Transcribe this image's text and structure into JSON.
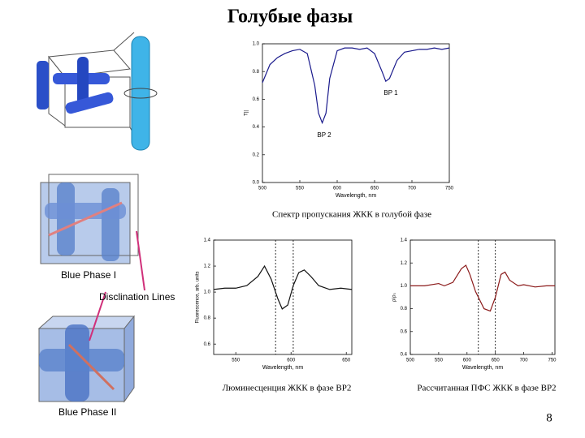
{
  "title": "Голубые фазы",
  "page_number": "8",
  "figure_labels": [
    "Blue Phase I",
    "Disclination Lines",
    "Blue Phase II"
  ],
  "chart_data": [
    {
      "type": "line",
      "caption": "Спектр пропускания ЖКК в голубой фазе",
      "x_label": "Wavelength, nm",
      "y_label": "T||",
      "annotations": [
        "BP 2",
        "BP 1"
      ],
      "x": [
        500,
        510,
        520,
        530,
        540,
        550,
        560,
        570,
        575,
        580,
        585,
        590,
        600,
        610,
        620,
        630,
        640,
        650,
        660,
        665,
        670,
        680,
        690,
        700,
        710,
        720,
        730,
        740,
        750
      ],
      "values": [
        0.72,
        0.85,
        0.9,
        0.93,
        0.95,
        0.96,
        0.93,
        0.7,
        0.5,
        0.43,
        0.5,
        0.75,
        0.95,
        0.97,
        0.97,
        0.96,
        0.97,
        0.93,
        0.8,
        0.73,
        0.75,
        0.88,
        0.94,
        0.95,
        0.96,
        0.96,
        0.97,
        0.96,
        0.97
      ],
      "color": "#1a1a8c",
      "xlim": [
        500,
        750
      ],
      "xticks": [
        500,
        550,
        600,
        650,
        700,
        750
      ],
      "ylim": [
        0,
        1
      ],
      "yticks": [
        {
          "value": 0,
          "label": "0.0"
        },
        0.2,
        0.4,
        0.6,
        0.8,
        {
          "value": 1,
          "label": "1.0"
        }
      ]
    },
    {
      "type": "line",
      "caption": "Люминесценция ЖКК в фазе BP2",
      "x_label": "Wavelength, nm",
      "y_label": "Fluorescence, arb. units",
      "x": [
        530,
        540,
        550,
        560,
        570,
        576,
        582,
        588,
        592,
        597,
        602,
        607,
        612,
        618,
        625,
        635,
        645,
        655
      ],
      "values": [
        1.02,
        1.03,
        1.03,
        1.05,
        1.12,
        1.2,
        1.1,
        0.95,
        0.87,
        0.9,
        1.05,
        1.15,
        1.17,
        1.12,
        1.05,
        1.02,
        1.03,
        1.02
      ],
      "color": "#111111",
      "vlines": [
        586,
        602
      ],
      "xlim": [
        530,
        655
      ],
      "xticks": [
        550,
        600,
        650
      ],
      "ylim": [
        0.52,
        1.4
      ],
      "yticks": [
        0.6,
        0.8,
        {
          "value": 1,
          "label": "1.0"
        },
        1.2,
        1.4
      ]
    },
    {
      "type": "line",
      "caption": "Рассчитанная ПФС ЖКК в фазе BP2",
      "x_label": "Wavelength, nm",
      "y_label": "ρ/ρ₀",
      "x": [
        500,
        525,
        550,
        560,
        575,
        590,
        598,
        605,
        615,
        630,
        641,
        650,
        660,
        667,
        675,
        690,
        700,
        720,
        740,
        755
      ],
      "values": [
        1.0,
        1.0,
        1.02,
        1.0,
        1.03,
        1.15,
        1.18,
        1.1,
        0.95,
        0.8,
        0.78,
        0.9,
        1.1,
        1.12,
        1.05,
        1.0,
        1.01,
        0.99,
        1.0,
        1.0
      ],
      "color": "#8b1a1a",
      "vlines": [
        620,
        650
      ],
      "xlim": [
        500,
        755
      ],
      "xticks": [
        500,
        550,
        600,
        650,
        700,
        750
      ],
      "ylim": [
        0.4,
        1.4
      ],
      "yticks": [
        0.4,
        0.6,
        0.8,
        {
          "value": 1,
          "label": "1.0"
        },
        1.2,
        1.4
      ]
    }
  ]
}
